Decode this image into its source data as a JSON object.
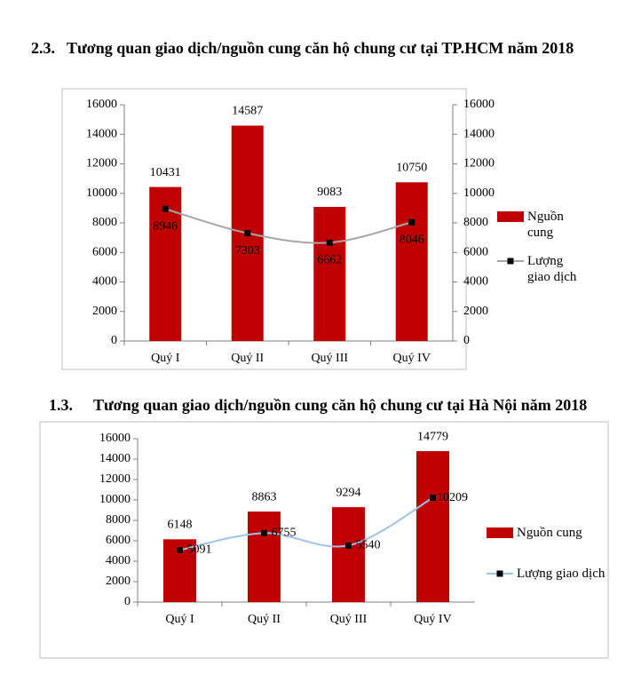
{
  "chart_data": [
    {
      "type": "bar",
      "section": "2.3.",
      "title": "Tương quan giao dịch/nguồn cung căn hộ chung cư tại TP.HCM năm 2018",
      "categories": [
        "Quý I",
        "Quý II",
        "Quý III",
        "Quý IV"
      ],
      "series": [
        {
          "name": "Nguồn cung",
          "type": "bar",
          "color": "#c00000",
          "values": [
            10431,
            14587,
            9083,
            10750
          ]
        },
        {
          "name": "Lượng giao dịch",
          "type": "line",
          "axis": "y2",
          "color": "#a6a6a6",
          "values": [
            8946,
            7303,
            6662,
            8046
          ]
        }
      ],
      "ylim": [
        0,
        16000
      ],
      "yticks": [
        0,
        2000,
        4000,
        6000,
        8000,
        10000,
        12000,
        14000,
        16000
      ],
      "y2lim": [
        0,
        16000
      ],
      "y2ticks": [
        0,
        2000,
        4000,
        6000,
        8000,
        10000,
        12000,
        14000,
        16000
      ],
      "grid": false,
      "legend": "right"
    },
    {
      "type": "bar",
      "section": "1.3.",
      "title": "Tương quan giao dịch/nguồn cung căn hộ chung cư tại Hà Nội năm 2018",
      "categories": [
        "Quý I",
        "Quý II",
        "Quý III",
        "Quý IV"
      ],
      "series": [
        {
          "name": "Nguồn cung",
          "type": "bar",
          "color": "#c00000",
          "values": [
            6148,
            8863,
            9294,
            14779
          ]
        },
        {
          "name": "Lượng giao dịch",
          "type": "line",
          "color": "#9dc3e6",
          "values": [
            5091,
            6755,
            5540,
            10209
          ]
        }
      ],
      "ylim": [
        0,
        16000
      ],
      "yticks": [
        0,
        2000,
        4000,
        6000,
        8000,
        10000,
        12000,
        14000,
        16000
      ],
      "grid": false,
      "legend": "right"
    }
  ]
}
